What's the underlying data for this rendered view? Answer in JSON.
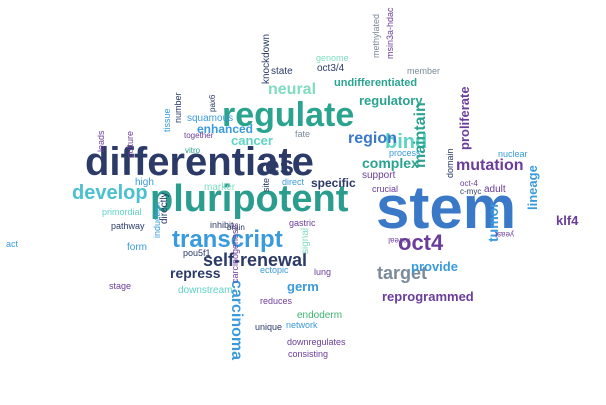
{
  "palette": {
    "navy": "#2b3a67",
    "teal": "#2a9d8f",
    "mint": "#5fd3c4",
    "sky": "#3a9bdc",
    "purple": "#6a3d9a",
    "violet": "#9b59b6",
    "green": "#3cb371",
    "gray": "#7b8a99",
    "lightmint": "#7fdcc0"
  },
  "words": [
    {
      "text": "stem",
      "color": "#3a78c8",
      "weight": "bold"
    },
    {
      "text": "differentiate",
      "color": "#2b3a67",
      "weight": "bold"
    },
    {
      "text": "pluripotent",
      "color": "#2a9d8f",
      "weight": "bold"
    },
    {
      "text": "regulate",
      "color": "#2aa38f",
      "weight": "bold"
    },
    {
      "text": "transcript",
      "color": "#3a9bdc",
      "weight": "bold"
    },
    {
      "text": "develop",
      "color": "#4ac0d0",
      "weight": "bold"
    },
    {
      "text": "self-renewal",
      "color": "#2b3a67",
      "weight": "bold"
    },
    {
      "text": "oct4",
      "color": "#6a3d9a",
      "weight": "bold"
    },
    {
      "text": "es",
      "color": "#2b3a67",
      "weight": "bold"
    },
    {
      "text": "bind",
      "color": "#5fd3c4",
      "weight": "bold"
    },
    {
      "text": "target",
      "color": "#7b8a99",
      "weight": "bold"
    },
    {
      "text": "region",
      "color": "#3a78c8",
      "weight": "bold"
    },
    {
      "text": "complex",
      "color": "#2aa38f",
      "weight": "bold"
    },
    {
      "text": "maintain",
      "color": "#2aa38f",
      "weight": "bold"
    },
    {
      "text": "carcinoma",
      "color": "#3a9bdc",
      "weight": "bold"
    },
    {
      "text": "reprogrammed",
      "color": "#6a3d9a",
      "weight": "bold"
    },
    {
      "text": "mutation",
      "color": "#6a3d9a",
      "weight": "bold"
    },
    {
      "text": "neural",
      "color": "#7fdcc0",
      "weight": "bold"
    },
    {
      "text": "cancer",
      "color": "#5fd3c4",
      "weight": "bold"
    },
    {
      "text": "repress",
      "color": "#2b3a67",
      "weight": "bold"
    },
    {
      "text": "germ",
      "color": "#3a9bdc",
      "weight": "bold"
    },
    {
      "text": "tumor",
      "color": "#3a9bdc",
      "weight": "bold"
    },
    {
      "text": "provide",
      "color": "#3a9bdc",
      "weight": "bold"
    },
    {
      "text": "proliferate",
      "color": "#6a3d9a",
      "weight": "bold"
    },
    {
      "text": "regulatory",
      "color": "#2aa38f",
      "weight": "bold"
    },
    {
      "text": "enhanced",
      "color": "#3a9bdc",
      "weight": "bold"
    },
    {
      "text": "specific",
      "color": "#2b3a67",
      "weight": "bold"
    },
    {
      "text": "undifferentiated",
      "color": "#2aa38f",
      "weight": "bold"
    },
    {
      "text": "lineage",
      "color": "#3a9bdc",
      "weight": "bold"
    },
    {
      "text": "klf4",
      "color": "#6a3d9a",
      "weight": "bold"
    },
    {
      "text": "state",
      "color": "#2b3a67",
      "weight": "normal"
    },
    {
      "text": "oct3/4",
      "color": "#2b3a67",
      "weight": "normal"
    },
    {
      "text": "knockdown",
      "color": "#2b3a67",
      "weight": "normal"
    },
    {
      "text": "genome",
      "color": "#7fdcc0",
      "weight": "normal"
    },
    {
      "text": "methylated",
      "color": "#7b8a99",
      "weight": "normal"
    },
    {
      "text": "msin3a-hdac",
      "color": "#6a3d9a",
      "weight": "normal"
    },
    {
      "text": "member",
      "color": "#7b8a99",
      "weight": "normal"
    },
    {
      "text": "squamous",
      "color": "#3a9bdc",
      "weight": "normal"
    },
    {
      "text": "pax6",
      "color": "#2b3a67",
      "weight": "normal"
    },
    {
      "text": "culture",
      "color": "#6a3d9a",
      "weight": "normal"
    },
    {
      "text": "tissue",
      "color": "#3a9bdc",
      "weight": "normal"
    },
    {
      "text": "number",
      "color": "#2b3a67",
      "weight": "normal"
    },
    {
      "text": "together",
      "color": "#6a3d9a",
      "weight": "normal"
    },
    {
      "text": "vitro",
      "color": "#2aa38f",
      "weight": "normal"
    },
    {
      "text": "fate",
      "color": "#7b8a99",
      "weight": "normal"
    },
    {
      "text": "leads",
      "color": "#6a3d9a",
      "weight": "normal"
    },
    {
      "text": "high",
      "color": "#3a9bdc",
      "weight": "normal"
    },
    {
      "text": "marker",
      "color": "#7fdcc0",
      "weight": "normal"
    },
    {
      "text": "site",
      "color": "#2b3a67",
      "weight": "normal"
    },
    {
      "text": "direct",
      "color": "#3a9bdc",
      "weight": "normal"
    },
    {
      "text": "support",
      "color": "#6a3d9a",
      "weight": "normal"
    },
    {
      "text": "crucial",
      "color": "#6a3d9a",
      "weight": "normal"
    },
    {
      "text": "process",
      "color": "#3a9bdc",
      "weight": "normal"
    },
    {
      "text": "domain",
      "color": "#2b3a67",
      "weight": "normal"
    },
    {
      "text": "c-myc",
      "color": "#2b3a67",
      "weight": "normal"
    },
    {
      "text": "oct-4",
      "color": "#6a3d9a",
      "weight": "normal"
    },
    {
      "text": "adult",
      "color": "#6a3d9a",
      "weight": "normal"
    },
    {
      "text": "nuclear",
      "color": "#3a9bdc",
      "weight": "normal"
    },
    {
      "text": "primordial",
      "color": "#5fd3c4",
      "weight": "normal"
    },
    {
      "text": "pathway",
      "color": "#2b3a67",
      "weight": "normal"
    },
    {
      "text": "directly",
      "color": "#2b3a67",
      "weight": "normal"
    },
    {
      "text": "inhibit",
      "color": "#2b3a67",
      "weight": "normal"
    },
    {
      "text": "gastric",
      "color": "#6a3d9a",
      "weight": "normal"
    },
    {
      "text": "brain",
      "color": "#2b3a67",
      "weight": "normal"
    },
    {
      "text": "form",
      "color": "#3a9bdc",
      "weight": "normal"
    },
    {
      "text": "induction",
      "color": "#3a9bdc",
      "weight": "normal"
    },
    {
      "text": "pou5f1",
      "color": "#2b3a67",
      "weight": "normal"
    },
    {
      "text": "ectopic",
      "color": "#3a9bdc",
      "weight": "normal"
    },
    {
      "text": "lung",
      "color": "#6a3d9a",
      "weight": "normal"
    },
    {
      "text": "signal",
      "color": "#7fdcc0",
      "weight": "normal"
    },
    {
      "text": "downstream",
      "color": "#5fd3c4",
      "weight": "normal"
    },
    {
      "text": "reduces",
      "color": "#6a3d9a",
      "weight": "normal"
    },
    {
      "text": "stage",
      "color": "#6a3d9a",
      "weight": "normal"
    },
    {
      "text": "carcinogenesis",
      "color": "#6a3d9a",
      "weight": "normal"
    },
    {
      "text": "unique",
      "color": "#2b3a67",
      "weight": "normal"
    },
    {
      "text": "network",
      "color": "#3a9bdc",
      "weight": "normal"
    },
    {
      "text": "endoderm",
      "color": "#3cb371",
      "weight": "normal"
    },
    {
      "text": "downregulates",
      "color": "#6a3d9a",
      "weight": "normal"
    },
    {
      "text": "consisting",
      "color": "#6a3d9a",
      "weight": "normal"
    },
    {
      "text": "act",
      "color": "#3a9bdc",
      "weight": "normal"
    },
    {
      "text": "reveal",
      "color": "#6a3d9a",
      "weight": "normal"
    },
    {
      "text": "yeast",
      "color": "#6a3d9a",
      "weight": "normal"
    }
  ]
}
